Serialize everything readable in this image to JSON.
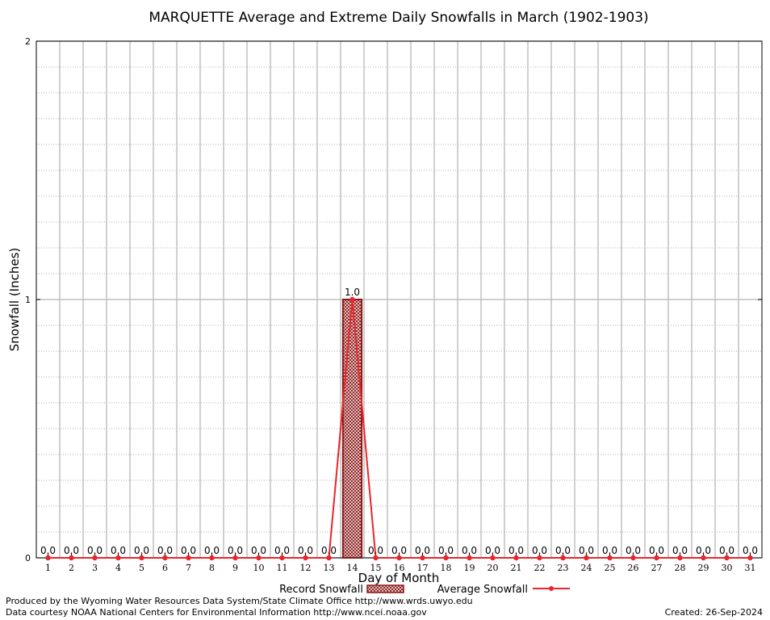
{
  "chart_data": {
    "type": "bar",
    "title": "MARQUETTE Average and Extreme Daily Snowfalls in March (1902-1903)",
    "xlabel": "Day of Month",
    "ylabel": "Snowfall (Inches)",
    "ylim": [
      0,
      2
    ],
    "yticks": [
      "0",
      "1",
      "2"
    ],
    "categories": [
      "1",
      "2",
      "3",
      "4",
      "5",
      "6",
      "7",
      "8",
      "9",
      "10",
      "11",
      "12",
      "13",
      "14",
      "15",
      "16",
      "17",
      "18",
      "19",
      "20",
      "21",
      "22",
      "23",
      "24",
      "25",
      "26",
      "27",
      "28",
      "29",
      "30",
      "31"
    ],
    "series": [
      {
        "name": "Record Snowfall",
        "kind": "bar",
        "color": "#8b1a1a",
        "values": [
          0,
          0,
          0,
          0,
          0,
          0,
          0,
          0,
          0,
          0,
          0,
          0,
          0,
          1.0,
          0,
          0,
          0,
          0,
          0,
          0,
          0,
          0,
          0,
          0,
          0,
          0,
          0,
          0,
          0,
          0,
          0
        ]
      },
      {
        "name": "Average Snowfall",
        "kind": "line",
        "color": "#e8262b",
        "values": [
          0,
          0,
          0,
          0,
          0,
          0,
          0,
          0,
          0,
          0,
          0,
          0,
          0,
          1.0,
          0,
          0,
          0,
          0,
          0,
          0,
          0,
          0,
          0,
          0,
          0,
          0,
          0,
          0,
          0,
          0,
          0
        ]
      }
    ],
    "data_labels": [
      "0.0",
      "0.0",
      "0.0",
      "0.0",
      "0.0",
      "0.0",
      "0.0",
      "0.0",
      "0.0",
      "0.0",
      "0.0",
      "0.0",
      "0.0",
      "1.0",
      "0.0",
      "0.0",
      "0.0",
      "0.0",
      "0.0",
      "0.0",
      "0.0",
      "0.0",
      "0.0",
      "0.0",
      "0.0",
      "0.0",
      "0.0",
      "0.0",
      "0.0",
      "0.0",
      "0.0"
    ],
    "grid": true,
    "legend_position": "bottom-center"
  },
  "footer": {
    "produced_by": "Produced by the Wyoming Water Resources Data System/State Climate Office http://www.wrds.uwyo.edu",
    "courtesy": "Data courtesy NOAA National Centers for Environmental Information http://www.ncei.noaa.gov",
    "created": "Created:  26-Sep-2024"
  }
}
